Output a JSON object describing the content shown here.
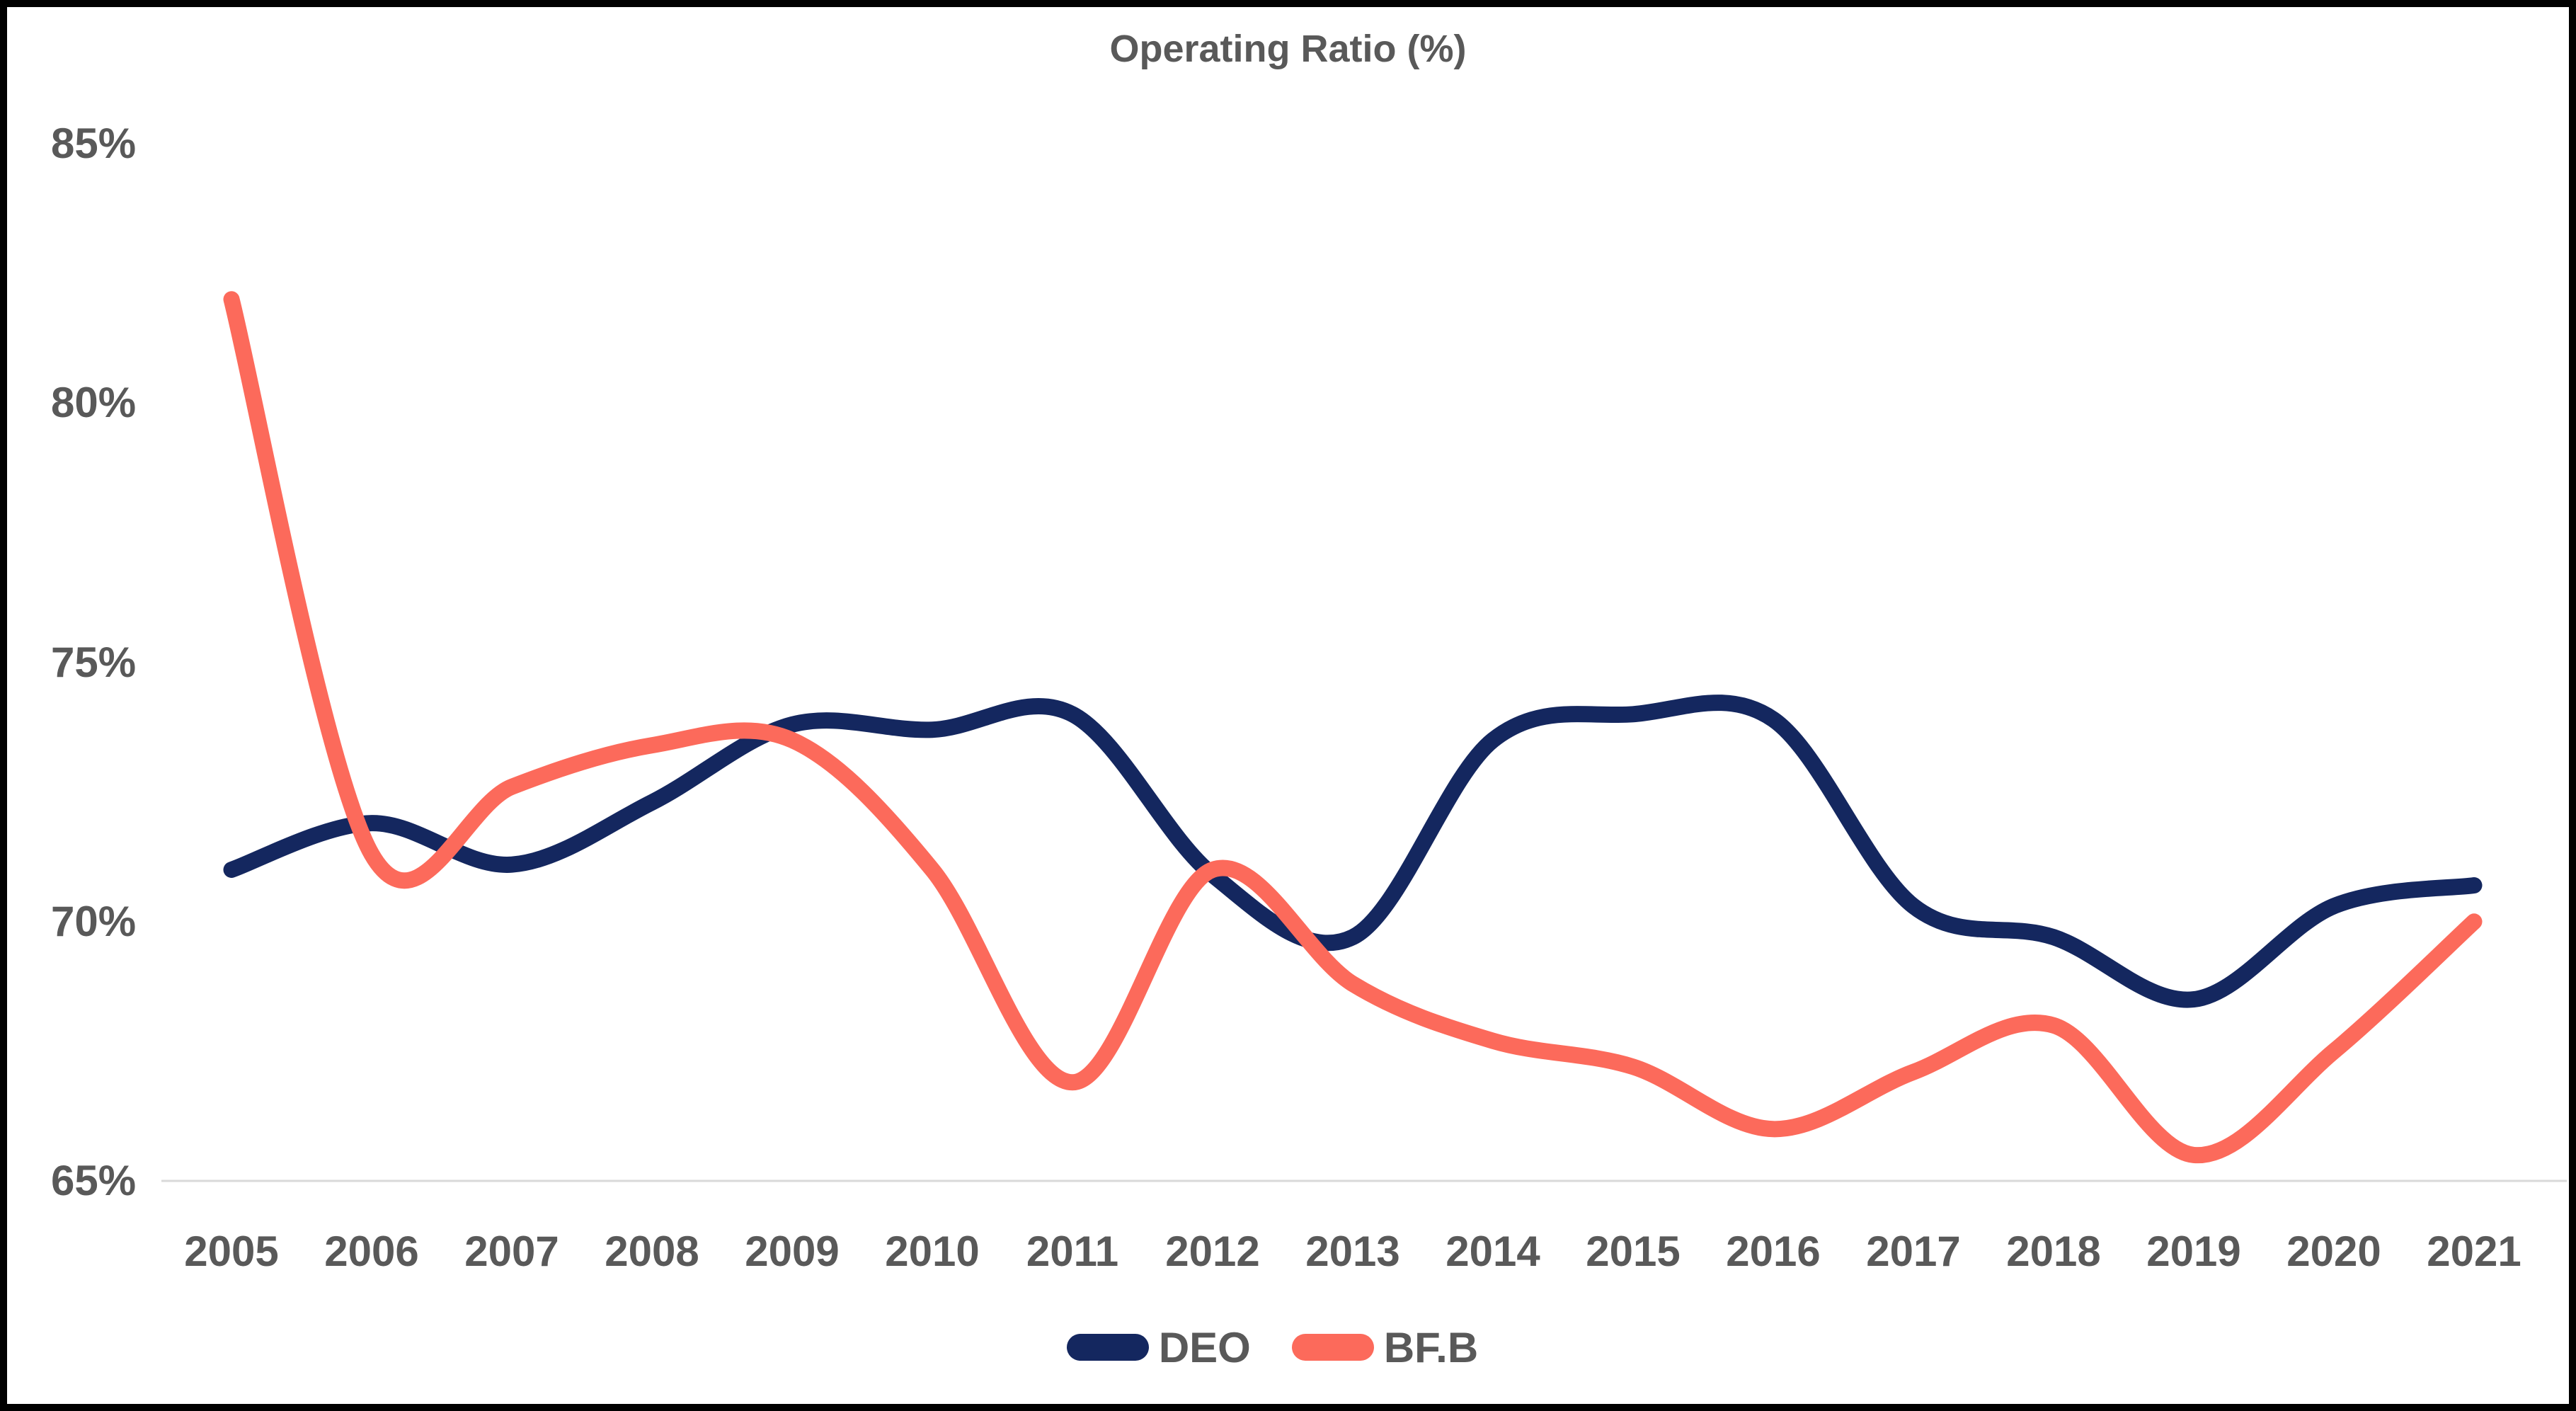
{
  "title": "Operating Ratio (%)",
  "colors": {
    "deo": "#14275F",
    "bfb": "#FC6A5B",
    "text": "#595959",
    "gridline": "#D9D9D9",
    "frame": "#000000",
    "background": "#FFFFFF"
  },
  "legend": {
    "items": [
      {
        "label": "DEO"
      },
      {
        "label": "BF.B"
      }
    ]
  },
  "y_axis": {
    "tick_labels": [
      "85%",
      "80%",
      "75%",
      "70%",
      "65%"
    ],
    "tick_values": [
      85,
      80,
      75,
      70,
      65
    ]
  },
  "x_axis": {
    "tick_labels": [
      "2005",
      "2006",
      "2007",
      "2008",
      "2009",
      "2010",
      "2011",
      "2012",
      "2013",
      "2014",
      "2015",
      "2016",
      "2017",
      "2018",
      "2019",
      "2020",
      "2021"
    ]
  },
  "chart_data": {
    "type": "line",
    "title": "Operating Ratio (%)",
    "x": [
      2005,
      2006,
      2007,
      2008,
      2009,
      2010,
      2011,
      2012,
      2013,
      2014,
      2015,
      2016,
      2017,
      2018,
      2019,
      2020,
      2021
    ],
    "series": [
      {
        "name": "DEO",
        "color": "#14275F",
        "values": [
          71.0,
          71.9,
          71.1,
          72.3,
          73.8,
          73.7,
          74.0,
          70.9,
          69.7,
          73.5,
          74.0,
          73.9,
          70.3,
          69.7,
          68.5,
          70.3,
          70.7
        ]
      },
      {
        "name": "BF.B",
        "color": "#FC6A5B",
        "values": [
          82.0,
          71.3,
          72.6,
          73.4,
          73.5,
          71.0,
          66.9,
          71.0,
          68.8,
          67.7,
          67.2,
          66.0,
          67.1,
          68.0,
          65.5,
          67.5,
          70.0
        ]
      }
    ],
    "ylim": [
      65,
      85
    ],
    "yticks": [
      65,
      70,
      75,
      80,
      85
    ],
    "ylabel": "",
    "xlabel": "",
    "grid": "single horizontal gridline at 65% (also x-axis line)",
    "legend_position": "bottom",
    "smoothed": true
  }
}
